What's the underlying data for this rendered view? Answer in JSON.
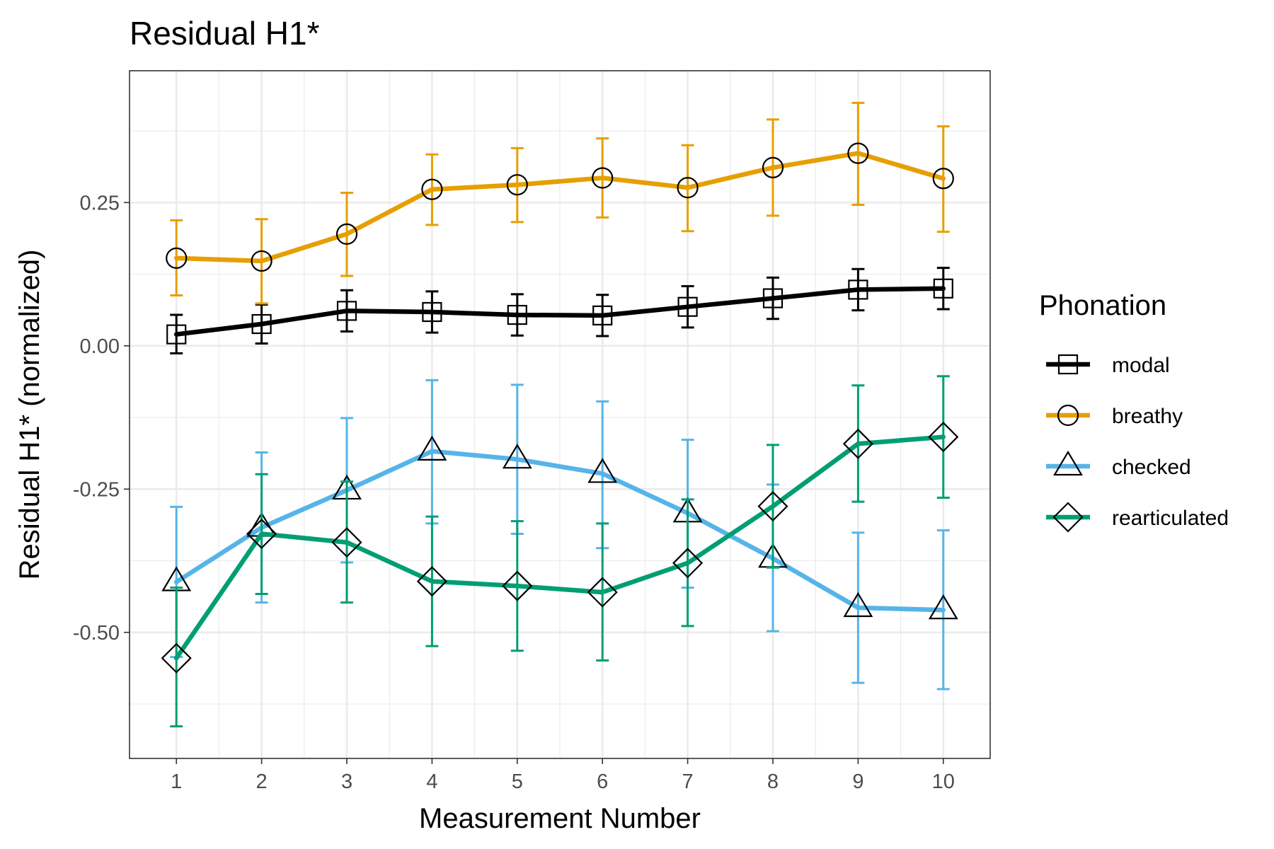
{
  "chart_data": {
    "type": "line",
    "title": "Residual H1*",
    "xlabel": "Measurement Number",
    "ylabel": "Residual H1* (normalized)",
    "x": [
      1,
      2,
      3,
      4,
      5,
      6,
      7,
      8,
      9,
      10
    ],
    "x_tick_labels": [
      "1",
      "2",
      "3",
      "4",
      "5",
      "6",
      "7",
      "8",
      "9",
      "10"
    ],
    "xlim": [
      0.45,
      10.55
    ],
    "ylim": [
      -0.72,
      0.48
    ],
    "y_ticks": [
      0.25,
      0.0,
      -0.25,
      -0.5
    ],
    "y_tick_labels": [
      "0.25",
      "0.00",
      "-0.25",
      "-0.50"
    ],
    "y_minor_ticks": [
      0.375,
      0.125,
      -0.125,
      -0.375,
      -0.625
    ],
    "grid": true,
    "legend": {
      "title": "Phonation",
      "position": "right"
    },
    "series": [
      {
        "name": "modal",
        "color": "#000000",
        "marker": "square",
        "values": [
          0.02,
          0.038,
          0.061,
          0.059,
          0.054,
          0.053,
          0.068,
          0.083,
          0.098,
          0.1
        ],
        "err_low": [
          -0.013,
          0.004,
          0.025,
          0.023,
          0.018,
          0.017,
          0.032,
          0.047,
          0.062,
          0.064
        ],
        "err_high": [
          0.054,
          0.072,
          0.097,
          0.095,
          0.09,
          0.089,
          0.104,
          0.119,
          0.134,
          0.136
        ]
      },
      {
        "name": "breathy",
        "color": "#E69F00",
        "marker": "circle",
        "values": [
          0.153,
          0.148,
          0.195,
          0.273,
          0.281,
          0.293,
          0.276,
          0.311,
          0.336,
          0.292
        ],
        "err_low": [
          0.088,
          0.074,
          0.122,
          0.211,
          0.216,
          0.224,
          0.2,
          0.227,
          0.246,
          0.199
        ],
        "err_high": [
          0.219,
          0.221,
          0.267,
          0.334,
          0.345,
          0.362,
          0.35,
          0.395,
          0.424,
          0.383
        ]
      },
      {
        "name": "checked",
        "color": "#56B4E9",
        "marker": "triangle",
        "values": [
          -0.412,
          -0.317,
          -0.252,
          -0.184,
          -0.198,
          -0.223,
          -0.292,
          -0.371,
          -0.457,
          -0.461
        ],
        "err_low": [
          -0.543,
          -0.448,
          -0.378,
          -0.31,
          -0.328,
          -0.353,
          -0.422,
          -0.498,
          -0.588,
          -0.599
        ],
        "err_high": [
          -0.281,
          -0.186,
          -0.126,
          -0.06,
          -0.068,
          -0.097,
          -0.164,
          -0.242,
          -0.326,
          -0.322
        ]
      },
      {
        "name": "rearticulated",
        "color": "#009E73",
        "marker": "diamond",
        "values": [
          -0.545,
          -0.328,
          -0.343,
          -0.411,
          -0.419,
          -0.43,
          -0.379,
          -0.28,
          -0.171,
          -0.159
        ],
        "err_low": [
          -0.664,
          -0.433,
          -0.448,
          -0.524,
          -0.532,
          -0.549,
          -0.489,
          -0.387,
          -0.272,
          -0.265
        ],
        "err_high": [
          -0.422,
          -0.224,
          -0.237,
          -0.298,
          -0.306,
          -0.31,
          -0.268,
          -0.173,
          -0.069,
          -0.053
        ]
      }
    ]
  }
}
